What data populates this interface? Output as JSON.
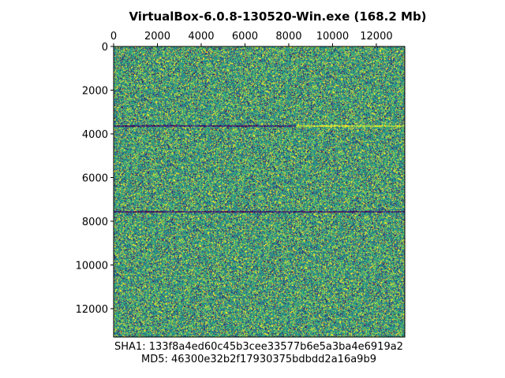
{
  "chart_data": {
    "type": "heatmap",
    "title": "VirtualBox-6.0.8-130520-Win.exe (168.2 Mb)",
    "xlabel": "",
    "ylabel": "",
    "x_axis_position": "top",
    "y_axis_inverted": true,
    "x_ticks": [
      0,
      2000,
      4000,
      6000,
      8000,
      10000,
      12000
    ],
    "y_ticks": [
      0,
      2000,
      4000,
      6000,
      8000,
      10000,
      12000
    ],
    "xlim": [
      0,
      13300
    ],
    "ylim": [
      13300,
      0
    ],
    "colormap": [
      "#440154",
      "#3b528b",
      "#21918c",
      "#5ec962",
      "#fde725"
    ],
    "grid": false,
    "legend": "none",
    "annotations": [
      "SHA1: 133f8a4ed60c45b3cee33577b6e5a3ba4e6919a2",
      "MD5: 46300e32b2f17930375bdbdd2a16a9b9"
    ]
  }
}
